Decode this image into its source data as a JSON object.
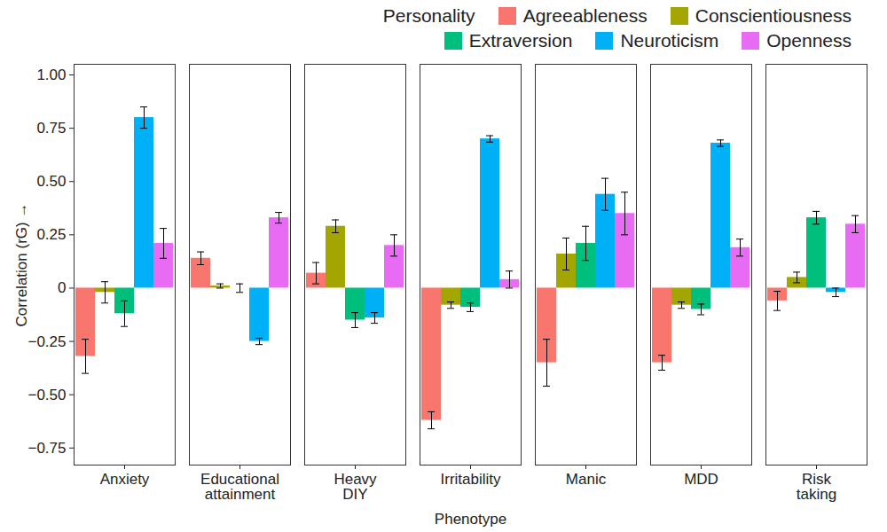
{
  "chart_data": {
    "type": "bar",
    "legend_title": "Personality",
    "legend": "top",
    "x_label": "Phenotype",
    "y_label": "Correlation (rG)",
    "categories": [
      "Anxiety",
      "Educational attainment",
      "Heavy DIY",
      "Irritability",
      "Manic",
      "MDD",
      "Risk taking"
    ],
    "series": [
      {
        "name": "Agreeableness",
        "color": "#F8766D",
        "values": [
          -0.32,
          0.14,
          0.07,
          -0.62,
          -0.35,
          -0.35,
          -0.06
        ],
        "errors": [
          0.08,
          0.03,
          0.05,
          0.04,
          0.11,
          0.035,
          0.045
        ]
      },
      {
        "name": "Conscientiousness",
        "color": "#A3A500",
        "values": [
          -0.02,
          0.01,
          0.29,
          -0.08,
          0.16,
          -0.08,
          0.05
        ],
        "errors": [
          0.05,
          0.01,
          0.03,
          0.015,
          0.075,
          0.015,
          0.025
        ]
      },
      {
        "name": "Extraversion",
        "color": "#00BF7D",
        "values": [
          -0.12,
          0.0,
          -0.15,
          -0.09,
          0.21,
          -0.1,
          0.33
        ],
        "errors": [
          0.06,
          0.02,
          0.035,
          0.02,
          0.08,
          0.025,
          0.03
        ]
      },
      {
        "name": "Neuroticism",
        "color": "#00B0F6",
        "values": [
          0.8,
          -0.25,
          -0.14,
          0.7,
          0.44,
          0.68,
          -0.02
        ],
        "errors": [
          0.05,
          0.015,
          0.025,
          0.015,
          0.075,
          0.015,
          0.02
        ]
      },
      {
        "name": "Openness",
        "color": "#E76BF3",
        "values": [
          0.21,
          0.33,
          0.2,
          0.04,
          0.35,
          0.19,
          0.3
        ],
        "errors": [
          0.07,
          0.025,
          0.05,
          0.04,
          0.1,
          0.04,
          0.04
        ]
      }
    ],
    "ylim": [
      -0.83,
      1.05
    ],
    "yticks": [
      {
        "value": -0.75,
        "label": "−0.75"
      },
      {
        "value": -0.5,
        "label": "−0.50"
      },
      {
        "value": -0.25,
        "label": "−0.25"
      },
      0,
      0.25,
      {
        "value": 0.5,
        "label": "0.50"
      },
      0.75,
      {
        "value": 1,
        "label": "1.00"
      }
    ],
    "grid": false
  }
}
